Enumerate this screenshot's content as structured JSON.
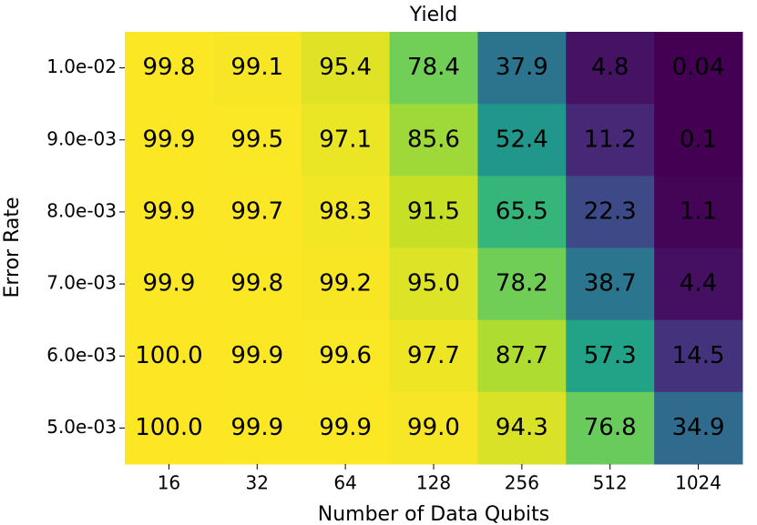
{
  "chart_data": {
    "type": "heatmap",
    "title": "Yield",
    "x_label": "Number of Data Qubits",
    "y_label": "Error Rate",
    "x_categories": [
      16,
      32,
      64,
      128,
      256,
      512,
      1024
    ],
    "y_categories": [
      "1.0e-02",
      "9.0e-03",
      "8.0e-03",
      "7.0e-03",
      "6.0e-03",
      "5.0e-03"
    ],
    "colormap": "viridis",
    "values": [
      [
        99.8,
        99.1,
        95.4,
        78.4,
        37.9,
        4.8,
        0.04
      ],
      [
        99.9,
        99.5,
        97.1,
        85.6,
        52.4,
        11.2,
        0.1
      ],
      [
        99.9,
        99.7,
        98.3,
        91.5,
        65.5,
        22.3,
        1.1
      ],
      [
        99.9,
        99.8,
        99.2,
        95.0,
        78.2,
        38.7,
        4.4
      ],
      [
        100.0,
        99.9,
        99.6,
        97.7,
        87.7,
        57.3,
        14.5
      ],
      [
        100.0,
        99.9,
        99.9,
        99.0,
        94.3,
        76.8,
        34.9
      ]
    ],
    "value_labels": [
      [
        "99.8",
        "99.1",
        "95.4",
        "78.4",
        "37.9",
        "4.8",
        "0.04"
      ],
      [
        "99.9",
        "99.5",
        "97.1",
        "85.6",
        "52.4",
        "11.2",
        "0.1"
      ],
      [
        "99.9",
        "99.7",
        "98.3",
        "91.5",
        "65.5",
        "22.3",
        "1.1"
      ],
      [
        "99.9",
        "99.8",
        "99.2",
        "95.0",
        "78.2",
        "38.7",
        "4.4"
      ],
      [
        "100.0",
        "99.9",
        "99.6",
        "97.7",
        "87.7",
        "57.3",
        "14.5"
      ],
      [
        "100.0",
        "99.9",
        "99.9",
        "99.0",
        "94.3",
        "76.8",
        "34.9"
      ]
    ]
  }
}
